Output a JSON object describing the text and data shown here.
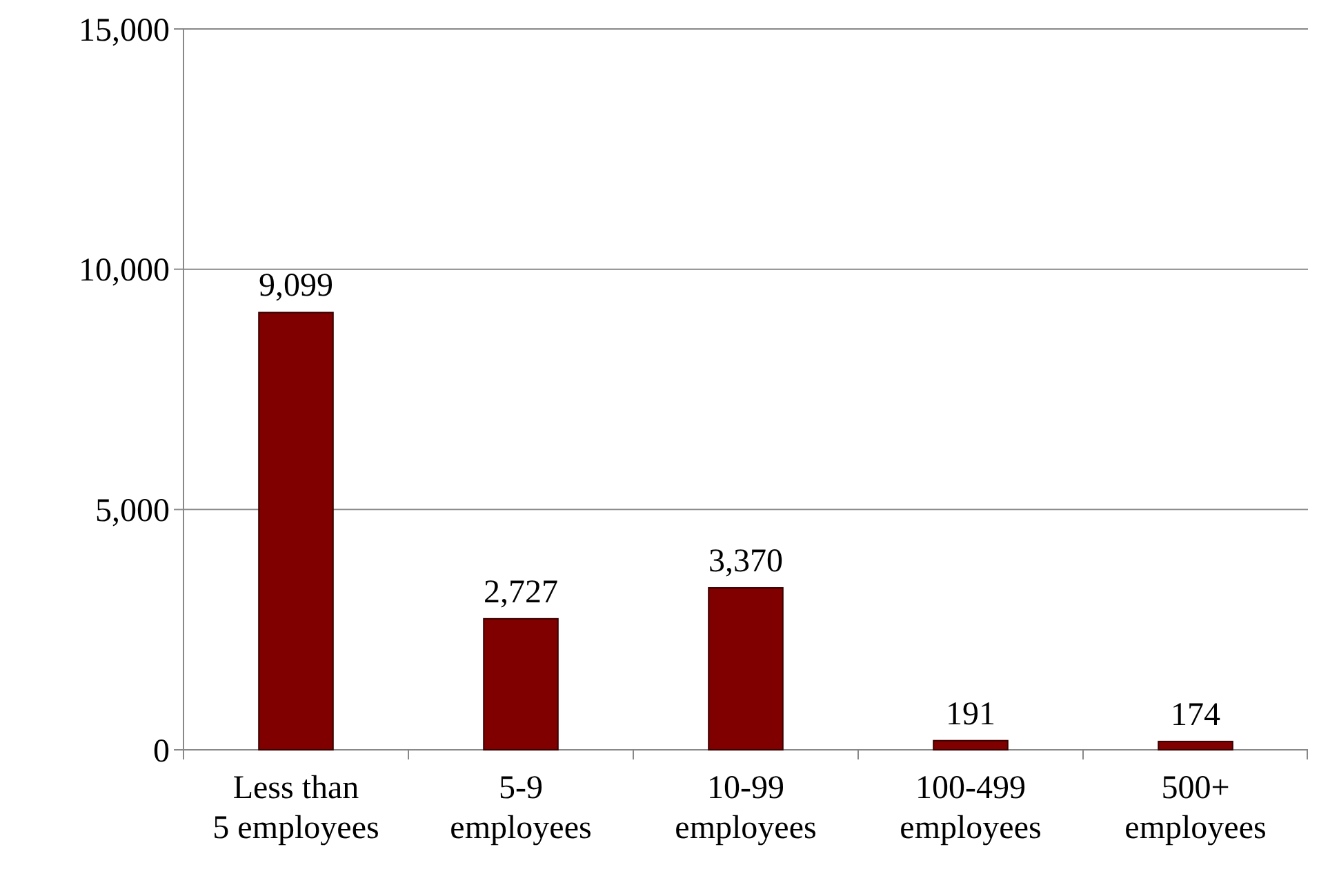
{
  "chart_data": {
    "type": "bar",
    "categories": [
      "Less than\n5 employees",
      "5-9\nemployees",
      "10-99\nemployees",
      "100-499\nemployees",
      "500+\nemployees"
    ],
    "values": [
      9099,
      2727,
      3370,
      191,
      174
    ],
    "color": "#800000",
    "ylim": [
      0,
      15000
    ],
    "yticks": [
      {
        "value": 0,
        "label": "0"
      },
      {
        "value": 5000,
        "label": "5,000"
      },
      {
        "value": 10000,
        "label": "10,000"
      },
      {
        "value": 15000,
        "label": "15,000"
      }
    ],
    "grid": "y",
    "value_labels": [
      "9,099",
      "2,727",
      "3,370",
      "191",
      "174"
    ]
  }
}
